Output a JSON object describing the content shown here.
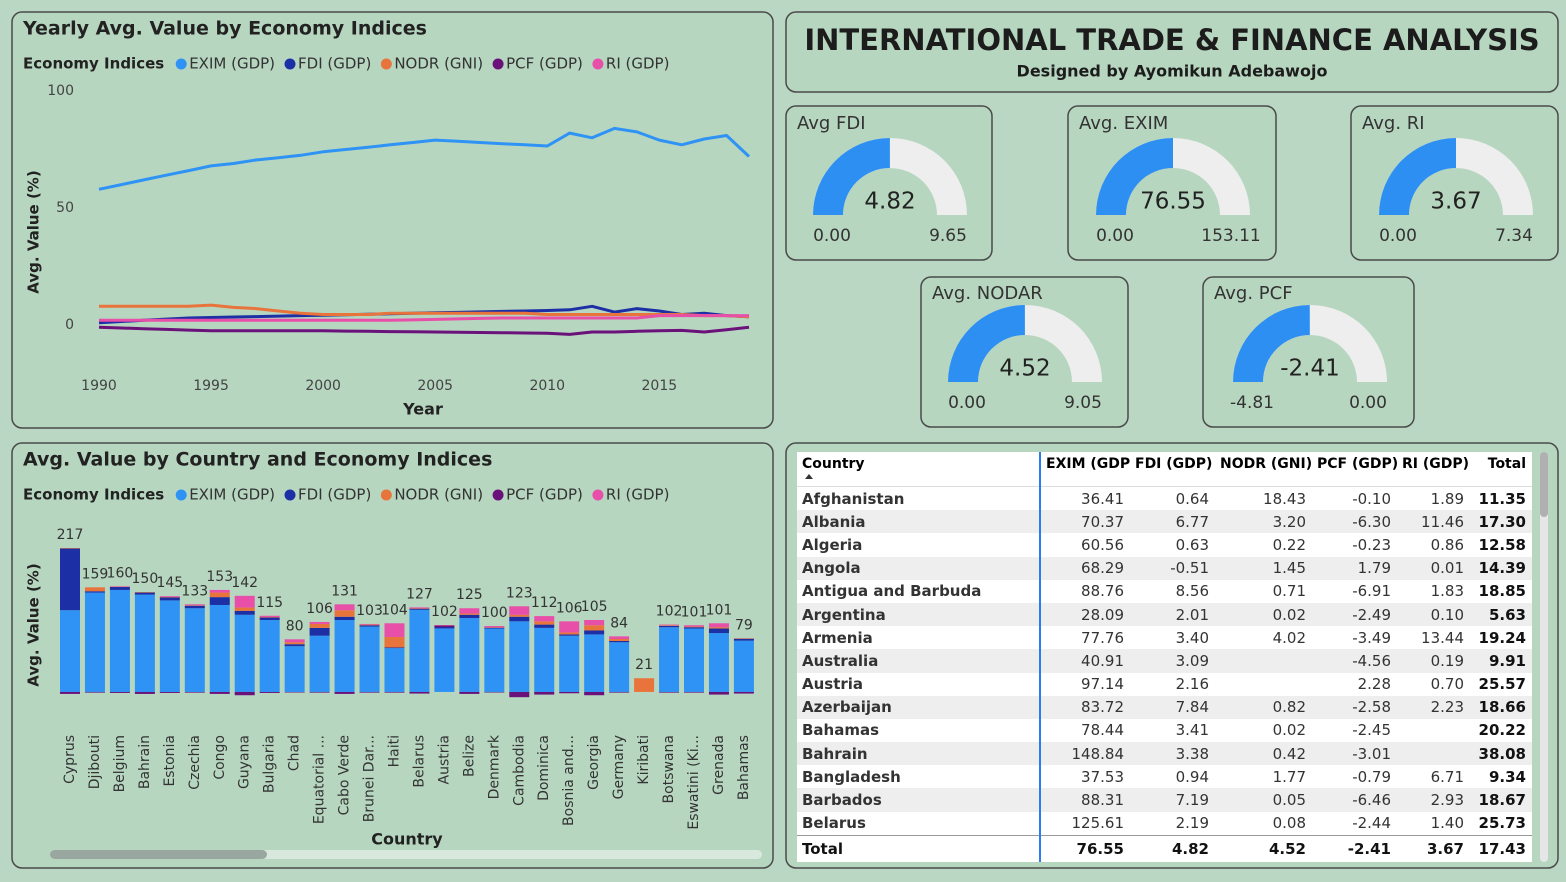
{
  "header": {
    "title": "INTERNATIONAL TRADE & FINANCE ANALYSIS",
    "subtitle": "Designed by Ayomikun Adebawojo"
  },
  "chart_data": [
    {
      "type": "line",
      "title": "Yearly Avg. Value by Economy Indices",
      "legend_title": "Economy Indices",
      "x_label": "Year",
      "y_label": "Avg. Value (%)",
      "x": [
        1990,
        1991,
        1992,
        1993,
        1994,
        1995,
        1996,
        1997,
        1998,
        1999,
        2000,
        2001,
        2002,
        2003,
        2004,
        2005,
        2006,
        2007,
        2008,
        2009,
        2010,
        2011,
        2012,
        2013,
        2014,
        2015,
        2016,
        2017,
        2018,
        2019
      ],
      "xlim": [
        1990,
        2019
      ],
      "xticks": [
        1990,
        1995,
        2000,
        2005,
        2010,
        2015
      ],
      "ylim": [
        -10,
        100
      ],
      "yticks": [
        0,
        50,
        100
      ],
      "series": [
        {
          "name": "EXIM (GDP)",
          "color": "#2e93f5",
          "values": [
            58,
            60,
            62,
            64,
            66,
            68,
            69,
            70.5,
            71.5,
            72.5,
            74,
            75,
            76,
            77,
            78,
            79,
            78.5,
            78,
            77.5,
            77,
            76.5,
            82,
            80,
            84,
            82.5,
            79,
            77,
            79.5,
            81,
            72
          ]
        },
        {
          "name": "FDI (GDP)",
          "color": "#1c2fa5",
          "values": [
            1,
            1.5,
            2,
            2.5,
            3,
            3.2,
            3.4,
            3.6,
            3.8,
            4,
            4.2,
            4.4,
            4.6,
            4.8,
            5,
            5.2,
            5.4,
            5.6,
            5.8,
            6,
            6.2,
            6.5,
            8,
            5.5,
            7,
            6,
            4.5,
            5,
            4,
            3.5
          ]
        },
        {
          "name": "NODR (GNI)",
          "color": "#e8743b",
          "values": [
            8,
            8,
            8,
            8,
            8,
            8.5,
            7.5,
            7,
            6,
            5,
            4.5,
            4.5,
            4.5,
            5,
            5,
            5,
            5,
            5,
            5,
            5,
            4.5,
            4.5,
            4.5,
            4.5,
            4.5,
            4.5,
            4.5,
            4,
            4,
            3.5
          ]
        },
        {
          "name": "PCF (GDP)",
          "color": "#6a117a",
          "values": [
            -1,
            -1.3,
            -1.6,
            -1.9,
            -2.2,
            -2.5,
            -2.5,
            -2.5,
            -2.5,
            -2.5,
            -2.5,
            -2.6,
            -2.7,
            -2.8,
            -2.9,
            -3,
            -3.1,
            -3.2,
            -3.3,
            -3.4,
            -3.5,
            -4,
            -3,
            -3,
            -2.7,
            -2.5,
            -2.3,
            -3,
            -2,
            -1
          ]
        },
        {
          "name": "RI (GDP)",
          "color": "#e84fa8",
          "values": [
            2,
            2,
            2,
            2,
            2,
            2,
            2,
            2,
            2,
            2,
            2,
            2,
            2,
            2,
            2.2,
            2.4,
            2.6,
            2.8,
            3,
            3,
            3,
            3,
            3,
            3,
            3,
            4,
            4,
            4,
            4,
            4
          ]
        }
      ]
    },
    {
      "type": "stacked_bar",
      "title": "Avg. Value by Country and Economy Indices",
      "legend_title": "Economy Indices",
      "x_label": "Country",
      "y_label": "Avg. Value (%)",
      "categories": [
        "Cyprus",
        "Djibouti",
        "Belgium",
        "Bahrain",
        "Estonia",
        "Czechia",
        "Congo",
        "Guyana",
        "Bulgaria",
        "Chad",
        "Equatorial ...",
        "Cabo Verde",
        "Brunei Dar...",
        "Haiti",
        "Belarus",
        "Austria",
        "Belize",
        "Denmark",
        "Cambodia",
        "Dominica",
        "Bosnia and...",
        "Georgia",
        "Germany",
        "Kiribati",
        "Botswana",
        "Eswatini (Ki...",
        "Grenada",
        "Bahamas"
      ],
      "ylim": [
        -10,
        240
      ],
      "totals": [
        217,
        159,
        160,
        150,
        145,
        133,
        153,
        142,
        115,
        80,
        106,
        131,
        103,
        104,
        127,
        102,
        125,
        100,
        123,
        112,
        106,
        105,
        84,
        21,
        102,
        101,
        101,
        79
      ],
      "series": [
        {
          "name": "EXIM (GDP)",
          "color": "#2e93f5",
          "values": [
            125,
            152,
            156,
            148.84,
            140,
            128,
            133,
            118,
            110,
            70,
            86,
            110,
            100,
            67,
            125.61,
            97.14,
            113,
            97,
            108,
            98,
            86,
            88,
            76,
            null,
            99,
            97,
            90,
            78.44
          ]
        },
        {
          "name": "FDI (GDP)",
          "color": "#1c2fa5",
          "values": [
            94.5,
            2,
            5,
            3.38,
            5,
            4,
            12,
            6,
            4,
            3,
            12,
            5,
            2,
            1,
            2.19,
            2.16,
            5,
            1.5,
            7,
            5,
            2,
            6,
            2,
            null,
            2,
            2,
            7,
            3.41
          ]
        },
        {
          "name": "NODR (GNI)",
          "color": "#e8743b",
          "values": [
            0.5,
            6,
            0.2,
            0.42,
            0.3,
            0.5,
            7,
            5,
            0.5,
            3,
            6,
            10,
            1,
            16,
            0.08,
            null,
            2,
            0.3,
            3,
            5,
            3,
            8,
            3,
            21,
            1,
            1,
            2,
            0.02
          ]
        },
        {
          "name": "PCF (GDP)",
          "color": "#6a117a",
          "values": [
            -3,
            -1,
            -1.5,
            -3.01,
            -1.5,
            -1,
            -3,
            -5,
            -1.5,
            -0.5,
            -1,
            -3,
            -1,
            -1,
            -2.44,
            2.28,
            -3,
            -0.8,
            -8,
            -4,
            -2,
            -5,
            -1,
            null,
            -1,
            -1,
            -4,
            -2.45
          ]
        },
        {
          "name": "RI (GDP)",
          "color": "#e84fa8",
          "values": [
            null,
            null,
            0.3,
            null,
            1.2,
            1.5,
            4,
            18,
            2,
            4.5,
            3,
            9,
            1,
            21,
            1.4,
            0.7,
            8,
            2,
            13,
            8,
            17,
            8,
            4,
            null,
            1,
            2,
            6,
            null
          ]
        }
      ]
    }
  ],
  "gauges": [
    {
      "label": "Avg FDI",
      "value": 4.82,
      "min": {
        "value": 0,
        "label": "0.00"
      },
      "max": 9.65
    },
    {
      "label": "Avg. EXIM",
      "value": 76.55,
      "min": {
        "value": 0,
        "label": "0.00"
      },
      "max": 153.11
    },
    {
      "label": "Avg. RI",
      "value": 3.67,
      "min": {
        "value": 0,
        "label": "0.00"
      },
      "max": 7.34
    },
    {
      "label": "Avg. NODAR",
      "value": 4.52,
      "min": {
        "value": 0,
        "label": "0.00"
      },
      "max": 9.05
    },
    {
      "label": "Avg. PCF",
      "value": -2.41,
      "min": -4.81,
      "max": {
        "value": 0,
        "label": "0.00"
      }
    }
  ],
  "table": {
    "columns": [
      "Country",
      "EXIM (GDP)",
      "FDI (GDP)",
      "NODR (GNI)",
      "PCF (GDP)",
      "RI (GDP)",
      "Total"
    ],
    "rows": [
      [
        "Afghanistan",
        "36.41",
        "0.64",
        "18.43",
        "-0.10",
        "1.89",
        "11.35"
      ],
      [
        "Albania",
        "70.37",
        "6.77",
        "3.20",
        "-6.30",
        "11.46",
        "17.30"
      ],
      [
        "Algeria",
        "60.56",
        "0.63",
        "0.22",
        "-0.23",
        "0.86",
        "12.58"
      ],
      [
        "Angola",
        "68.29",
        "-0.51",
        "1.45",
        "1.79",
        "0.01",
        "14.39"
      ],
      [
        "Antigua and Barbuda",
        "88.76",
        "8.56",
        "0.71",
        "-6.91",
        "1.83",
        "18.85"
      ],
      [
        "Argentina",
        "28.09",
        "2.01",
        "0.02",
        "-2.49",
        "0.10",
        "5.63"
      ],
      [
        "Armenia",
        "77.76",
        "3.40",
        "4.02",
        "-3.49",
        "13.44",
        "19.24"
      ],
      [
        "Australia",
        "40.91",
        "3.09",
        null,
        "-4.56",
        "0.19",
        "9.91"
      ],
      [
        "Austria",
        "97.14",
        "2.16",
        null,
        "2.28",
        "0.70",
        "25.57"
      ],
      [
        "Azerbaijan",
        "83.72",
        "7.84",
        "0.82",
        "-2.58",
        "2.23",
        "18.66"
      ],
      [
        "Bahamas",
        "78.44",
        "3.41",
        "0.02",
        "-2.45",
        null,
        "20.22"
      ],
      [
        "Bahrain",
        "148.84",
        "3.38",
        "0.42",
        "-3.01",
        null,
        "38.08"
      ],
      [
        "Bangladesh",
        "37.53",
        "0.94",
        "1.77",
        "-0.79",
        "6.71",
        "9.34"
      ],
      [
        "Barbados",
        "88.31",
        "7.19",
        "0.05",
        "-6.46",
        "2.93",
        "18.67"
      ],
      [
        "Belarus",
        "125.61",
        "2.19",
        "0.08",
        "-2.44",
        "1.40",
        "25.73"
      ]
    ],
    "total": [
      "Total",
      "76.55",
      "4.82",
      "4.52",
      "-2.41",
      "3.67",
      "17.43"
    ]
  }
}
